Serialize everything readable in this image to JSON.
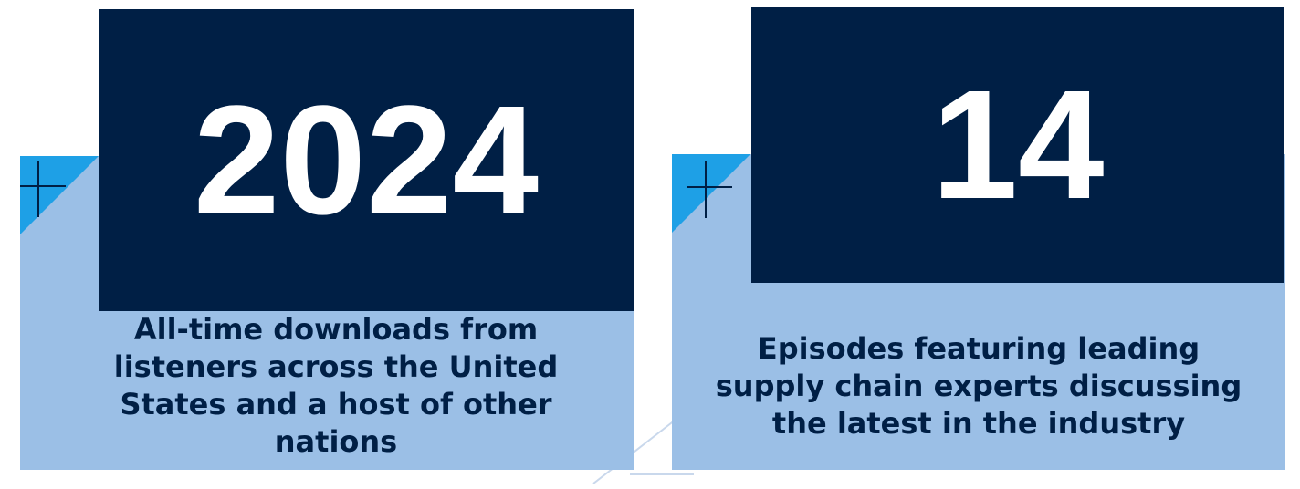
{
  "stats": [
    {
      "number": "2024",
      "description": "All-time downloads from listeners across the United States and a host of other nations"
    },
    {
      "number": "14",
      "description": "Episodes featuring leading supply chain experts discussing the latest in the industry"
    }
  ]
}
